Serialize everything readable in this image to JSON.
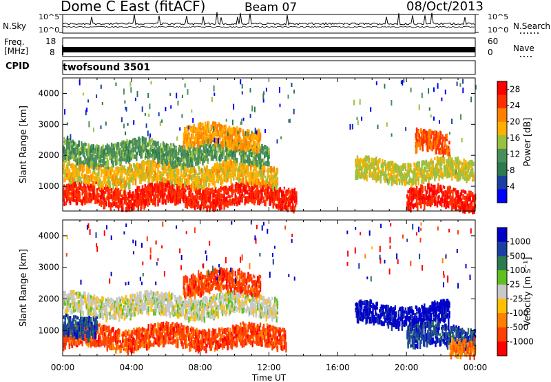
{
  "header": {
    "title": "Dome C East (fitACF)",
    "beam": "Beam 07",
    "date": "08/Oct/2013"
  },
  "panels": {
    "nsky": {
      "label": "N.Sky",
      "tick_top": "10^5",
      "tick_bottom": "10^0",
      "right_label": "N.Search",
      "right_tick_top": "10^5",
      "right_tick_bottom": "10^0"
    },
    "freq": {
      "label_line1": "Freq.",
      "label_line2": "[MHz]",
      "tick_top": "18",
      "tick_bottom": "8",
      "right_label": "Nave",
      "right_tick_top": "60",
      "right_tick_bottom": "0"
    },
    "cpid": {
      "label": "CPID",
      "value": "twofsound 3501"
    }
  },
  "colors": {
    "power": [
      "#0000ff",
      "#1b3fa0",
      "#2c7a4e",
      "#4a8f5a",
      "#9ac040",
      "#ffb000",
      "#ff8000",
      "#ff3000",
      "#ff0000"
    ],
    "velocity": [
      "#ff0000",
      "#ff4000",
      "#ff8000",
      "#ffc000",
      "#c8c8c8",
      "#60c020",
      "#2c7a4e",
      "#1b3fa0",
      "#0000c8"
    ]
  },
  "chart_data": [
    {
      "type": "heatmap",
      "title": "",
      "xlabel": "",
      "ylabel": "Slant Range [km]",
      "xlim": [
        "00:00",
        "24:00"
      ],
      "ylim": [
        200,
        4500
      ],
      "yticks": [
        "1000",
        "2000",
        "3000",
        "4000"
      ],
      "colorbar": {
        "label": "Power [dB]",
        "ticks": [
          "4",
          "8",
          "12",
          "16",
          "20",
          "24",
          "28"
        ],
        "range": [
          0,
          30
        ]
      },
      "x": [
        "00:00",
        "04:00",
        "08:00",
        "12:00",
        "16:00",
        "20:00",
        "00:00"
      ],
      "bands": [
        {
          "t_start": 0.0,
          "t_end": 13.6,
          "range_km": 700,
          "power_db": 26
        },
        {
          "t_start": 0.0,
          "t_end": 12.5,
          "range_km": 1400,
          "power_db": 18
        },
        {
          "t_start": 0.0,
          "t_end": 12.0,
          "range_km": 2100,
          "power_db": 12
        },
        {
          "t_start": 7.0,
          "t_end": 11.5,
          "range_km": 2600,
          "power_db": 20
        },
        {
          "t_start": 17.0,
          "t_end": 23.9,
          "range_km": 1500,
          "power_db": 16
        },
        {
          "t_start": 20.0,
          "t_end": 24.0,
          "range_km": 600,
          "power_db": 27
        },
        {
          "t_start": 20.5,
          "t_end": 22.5,
          "range_km": 2400,
          "power_db": 24
        }
      ]
    },
    {
      "type": "heatmap",
      "title": "",
      "xlabel": "Time UT",
      "ylabel": "Slant Range [km]",
      "xlim": [
        "00:00",
        "24:00"
      ],
      "ylim": [
        200,
        4500
      ],
      "yticks": [
        "1000",
        "2000",
        "3000",
        "4000"
      ],
      "colorbar": {
        "label": "Velocity [m s^-1]",
        "ticks": [
          "1000",
          "500",
          "100",
          "25",
          "-25",
          "-100",
          "-500",
          "-1000"
        ],
        "range": [
          -1000,
          1000
        ]
      },
      "x": [
        "00:00",
        "04:00",
        "08:00",
        "12:00",
        "16:00",
        "20:00",
        "00:00"
      ],
      "bands": [
        {
          "t_start": 0.0,
          "t_end": 13.0,
          "range_km": 800,
          "velocity": -100
        },
        {
          "t_start": 0.0,
          "t_end": 12.5,
          "range_km": 1800,
          "velocity": 0
        },
        {
          "t_start": 7.0,
          "t_end": 11.5,
          "range_km": 2500,
          "velocity": -100
        },
        {
          "t_start": 0.0,
          "t_end": 2.0,
          "range_km": 1200,
          "velocity": 100
        },
        {
          "t_start": 17.0,
          "t_end": 22.5,
          "range_km": 1500,
          "velocity": 500
        },
        {
          "t_start": 20.0,
          "t_end": 24.0,
          "range_km": 800,
          "velocity": 100
        },
        {
          "t_start": 22.5,
          "t_end": 24.0,
          "range_km": 500,
          "velocity": -25
        }
      ]
    }
  ]
}
